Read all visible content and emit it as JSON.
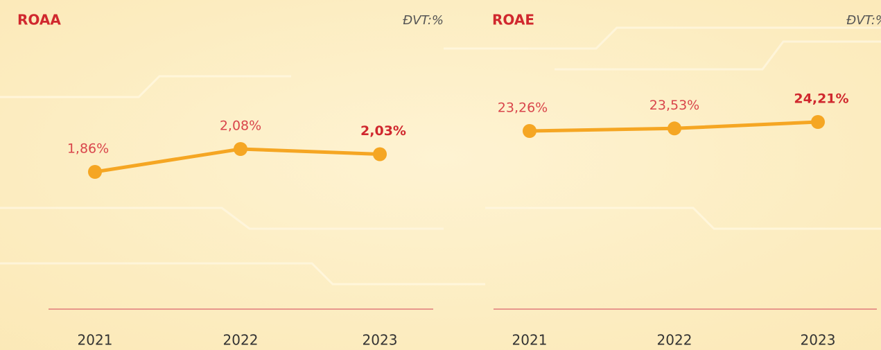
{
  "chart_data": [
    {
      "type": "line",
      "title": "ROAA",
      "unit": "ĐVT:%",
      "categories": [
        "2021",
        "2022",
        "2023"
      ],
      "values": [
        1.86,
        2.08,
        2.03
      ],
      "value_labels": [
        "1,86%",
        "2,08%",
        "2,03%"
      ],
      "color": "#f5a623"
    },
    {
      "type": "line",
      "title": "ROAE",
      "unit": "ĐVT:%",
      "categories": [
        "2021",
        "2022",
        "2023"
      ],
      "values": [
        23.26,
        23.53,
        24.21
      ],
      "value_labels": [
        "23,26%",
        "23,53%",
        "24,21%"
      ],
      "color": "#f5a623"
    }
  ]
}
